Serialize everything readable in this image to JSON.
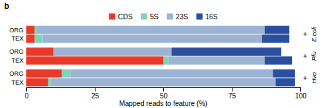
{
  "chart_data": {
    "type": "bar",
    "orientation": "horizontal",
    "stacked": true,
    "title": "b",
    "xlabel": "Mapped reads to feature (%)",
    "categories": [
      "ORG",
      "TEX",
      "ORG",
      "TEX",
      "ORG",
      "TEX"
    ],
    "groups": [
      {
        "name": "E.coli",
        "sign": "+"
      },
      {
        "name": "Pfu",
        "sign": "+"
      },
      {
        "name": "Hvo",
        "sign": "+"
      }
    ],
    "series": [
      {
        "name": "CDS",
        "color": "#e8392a",
        "values": [
          3,
          3,
          10,
          50,
          13,
          8
        ]
      },
      {
        "name": "5S",
        "color": "#7dd4b8",
        "values": [
          1,
          3,
          0,
          2,
          3,
          1
        ]
      },
      {
        "name": "23S",
        "color": "#9cb3d4",
        "values": [
          83,
          80,
          43,
          35,
          74,
          82
        ]
      },
      {
        "name": "16S",
        "color": "#2b4fa0",
        "values": [
          9,
          10,
          40,
          10,
          8,
          7
        ]
      }
    ],
    "xlim": [
      0,
      100
    ],
    "xticks": [
      0,
      25,
      50,
      75,
      100
    ],
    "grid": false,
    "legend": "top"
  }
}
